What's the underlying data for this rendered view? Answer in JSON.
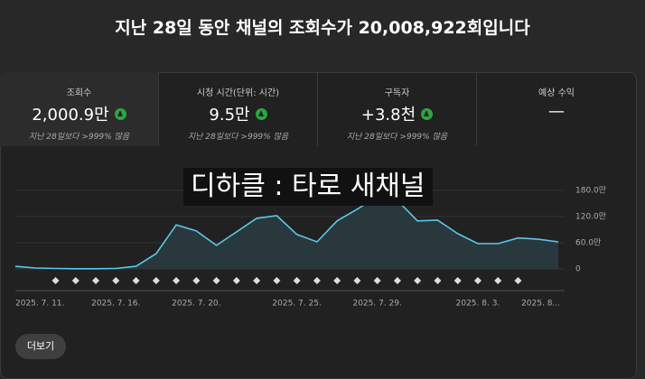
{
  "header": {
    "title": "지난 28일 동안 채널의 조회수가 20,008,922회입니다"
  },
  "metrics": [
    {
      "label": "조회수",
      "value": "2,000.9만",
      "note": "지난 28일보다 >999% 많음"
    },
    {
      "label": "시청 시간(단위: 시간)",
      "value": "9.5만",
      "note": "지난 28일보다 >999% 많음"
    },
    {
      "label": "구독자",
      "value": "+3.8천",
      "note": "지난 28일보다 >999% 많음"
    },
    {
      "label": "예상 수익",
      "value": "—"
    }
  ],
  "overlay": "디하클 : 타로 새채널",
  "chart_data": {
    "type": "line",
    "categories": [
      "2025. 7. 11.",
      null,
      null,
      null,
      null,
      "2025. 7. 16.",
      null,
      null,
      null,
      "2025. 7. 20.",
      null,
      null,
      null,
      null,
      "2025. 7. 25.",
      null,
      null,
      null,
      "2025. 7. 29.",
      null,
      null,
      null,
      null,
      "2025. 8. 3.",
      null,
      null,
      null,
      "2025. 8..."
    ],
    "series": [
      {
        "name": "조회수",
        "color": "#5cc6e8",
        "values": [
          6,
          2,
          1,
          0.5,
          0.5,
          1,
          6,
          35,
          101,
          87,
          54,
          85,
          116,
          122,
          79,
          62,
          110,
          137,
          166,
          157,
          110,
          112,
          81,
          58,
          58,
          71,
          68,
          62
        ]
      }
    ],
    "ylim": [
      0,
      180
    ],
    "yticks": [
      0,
      {
        "value": 60,
        "label": "60.0만"
      },
      {
        "value": 120,
        "label": "120.0만"
      },
      {
        "value": 180,
        "label": "180.0만"
      }
    ]
  },
  "button": "더보기"
}
